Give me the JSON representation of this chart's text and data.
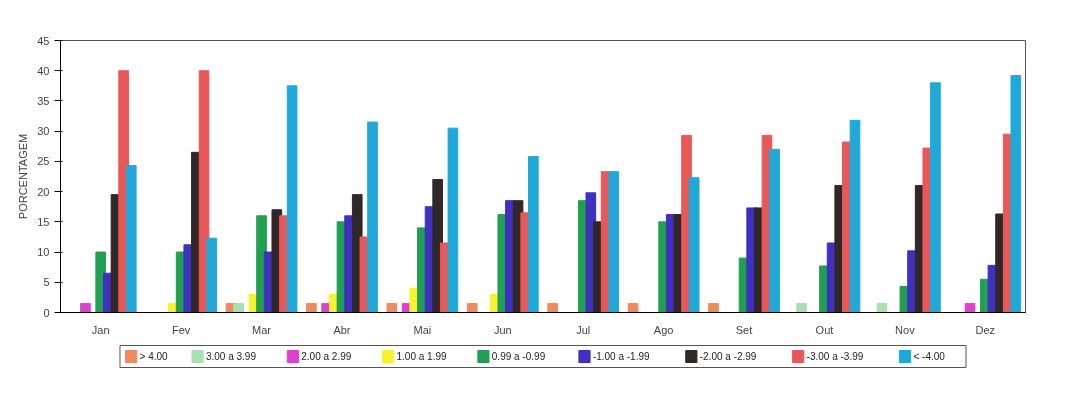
{
  "chart_data": {
    "type": "bar",
    "ylabel": "PORCENTAGEM",
    "categories": [
      "Jan",
      "Fev",
      "Mar",
      "Abr",
      "Mai",
      "Jun",
      "Jul",
      "Ago",
      "Set",
      "Out",
      "Nov",
      "Dez"
    ],
    "ylim": [
      0,
      45
    ],
    "yticks": [
      0,
      5,
      10,
      15,
      20,
      25,
      30,
      35,
      40,
      45
    ],
    "grid": false,
    "legend": "bottom",
    "series": [
      {
        "name": "> 4.00",
        "color": "#f08a5a",
        "values": [
          0,
          0,
          1.5,
          1.5,
          1.5,
          1.5,
          1.5,
          1.5,
          1.5,
          0,
          0,
          0
        ]
      },
      {
        "name": "3.00 a 3.99",
        "color": "#a8e0b0",
        "values": [
          0,
          0,
          1.5,
          0,
          0,
          0,
          0,
          0,
          0,
          1.5,
          1.5,
          0
        ]
      },
      {
        "name": "2.00 a 2.99",
        "color": "#e040d0",
        "values": [
          1.5,
          0,
          0,
          1.5,
          1.5,
          0,
          0,
          0,
          0,
          0,
          0,
          1.5
        ]
      },
      {
        "name": "1.00 a 1.99",
        "color": "#f8f030",
        "values": [
          0,
          1.5,
          3,
          3,
          4,
          3,
          0,
          0,
          0,
          0,
          0,
          0
        ]
      },
      {
        "name": "0.99 a -0.99",
        "color": "#20a050",
        "values": [
          10,
          10,
          16,
          15,
          14,
          16.2,
          18.5,
          15,
          9,
          7.7,
          4.3,
          5.5
        ]
      },
      {
        "name": "-1.00 a -1.99",
        "color": "#4030c0",
        "values": [
          6.5,
          11.2,
          10,
          16,
          17.5,
          18.5,
          19.8,
          16.2,
          17.3,
          11.5,
          10.2,
          7.8
        ]
      },
      {
        "name": "-2.00 a -2.99",
        "color": "#302828",
        "values": [
          19.5,
          26.5,
          17,
          19.5,
          22,
          18.5,
          15,
          16.2,
          17.3,
          21,
          21,
          16.3
        ]
      },
      {
        "name": "-3.00 a -3.99",
        "color": "#e85858",
        "values": [
          40,
          40,
          16,
          12.5,
          11.5,
          16.5,
          23.3,
          29.3,
          29.3,
          28.2,
          27.2,
          29.5
        ]
      },
      {
        "name": "< -4.00",
        "color": "#20a8d8",
        "values": [
          24.3,
          12.3,
          37.5,
          31.5,
          30.5,
          25.8,
          23.3,
          22.3,
          27,
          31.8,
          38,
          39.2
        ]
      }
    ]
  }
}
